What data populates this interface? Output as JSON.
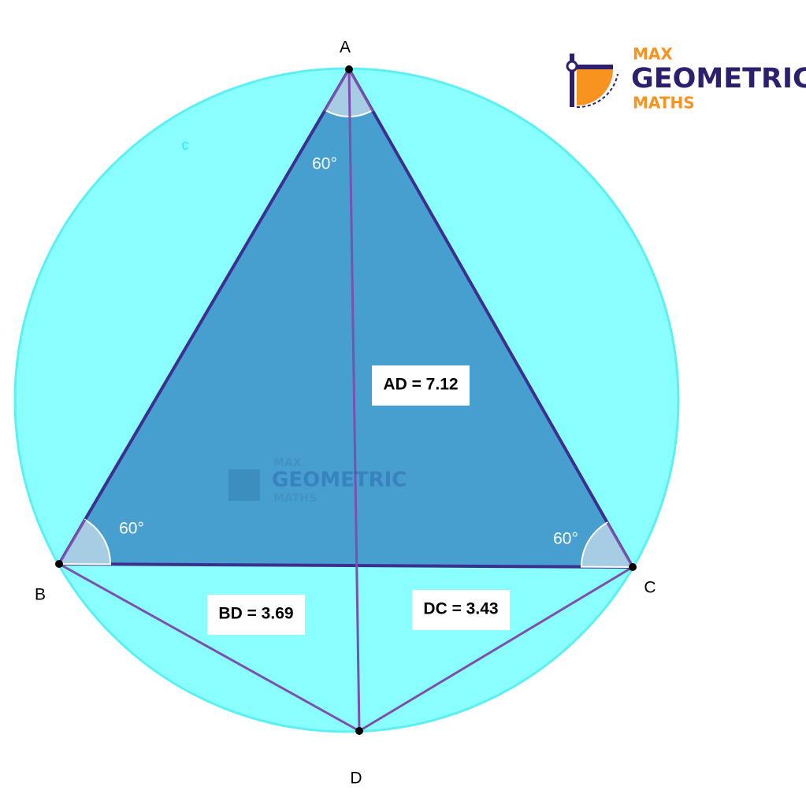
{
  "points": [
    {
      "label": "A"
    },
    {
      "label": "B"
    },
    {
      "label": "C"
    },
    {
      "label": "D"
    }
  ],
  "circle_label": "c",
  "angles": [
    "60°",
    "60°",
    "60°"
  ],
  "segments": [
    {
      "label": "AD = 7.12"
    },
    {
      "label": "BD = 3.69"
    },
    {
      "label": "DC = 3.43"
    }
  ],
  "logo": {
    "max": "MAX",
    "geometric": "GEOMETRIC",
    "maths": "MATHS"
  }
}
